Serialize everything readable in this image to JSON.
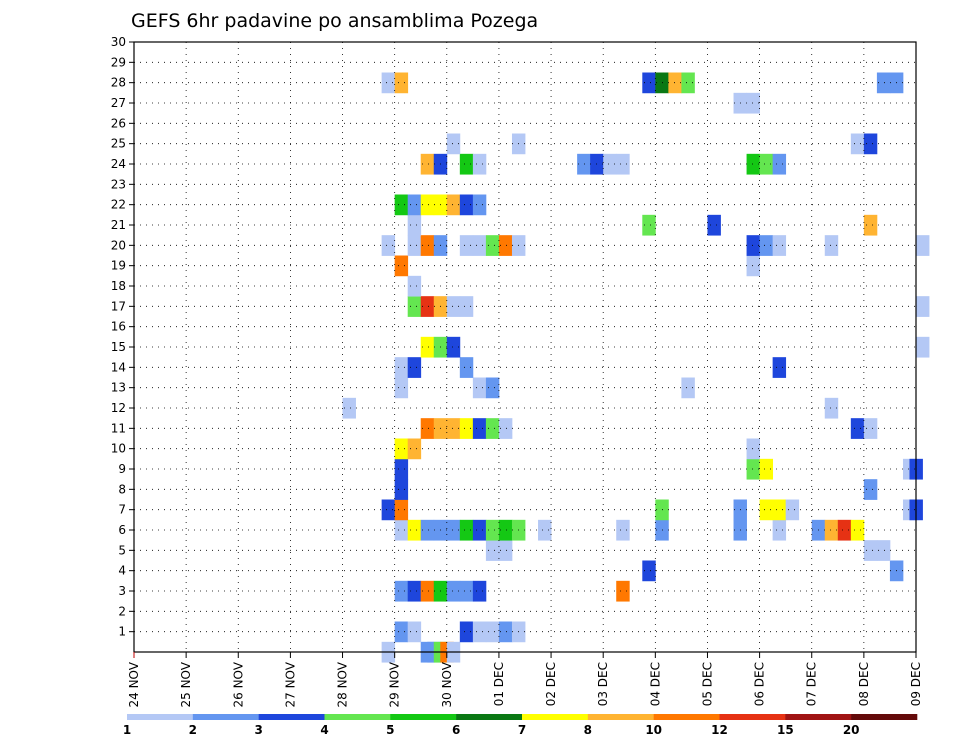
{
  "chart_data": {
    "type": "heatmap",
    "title": "GEFS 6hr padavine po ansamblima Pozega",
    "xlabel": "",
    "ylabel": "",
    "x_tick_labels": [
      "24 NOV",
      "25 NOV",
      "26 NOV",
      "27 NOV",
      "28 NOV",
      "29 NOV",
      "30 NOV",
      "01 DEC",
      "02 DEC",
      "03 DEC",
      "04 DEC",
      "05 DEC",
      "06 DEC",
      "07 DEC",
      "08 DEC",
      "09 DEC"
    ],
    "y_tick_labels": [
      "1",
      "2",
      "3",
      "4",
      "5",
      "6",
      "7",
      "8",
      "9",
      "10",
      "11",
      "12",
      "13",
      "14",
      "15",
      "16",
      "17",
      "18",
      "19",
      "20",
      "21",
      "22",
      "23",
      "24",
      "25",
      "26",
      "27",
      "28",
      "29",
      "30"
    ],
    "ylim": [
      0,
      30
    ],
    "x_steps_per_day": 4,
    "grid": true,
    "legend": {
      "placement": "bottom",
      "labels": [
        "1",
        "2",
        "3",
        "4",
        "5",
        "6",
        "7",
        "8",
        "10",
        "12",
        "15",
        "20"
      ],
      "colors": [
        "#b4c8f5",
        "#6496f0",
        "#1e46dc",
        "#64e650",
        "#14c814",
        "#0a7814",
        "#ffff00",
        "#ffb432",
        "#ff7800",
        "#e63214",
        "#a01414",
        "#640a0a"
      ]
    },
    "color_levels": [
      1,
      2,
      3,
      4,
      5,
      6,
      7,
      8,
      10,
      12,
      15,
      20
    ],
    "cells": [
      {
        "m": 0,
        "s": 19,
        "v": 1
      },
      {
        "m": 0,
        "s": 22,
        "v": 2
      },
      {
        "m": 0,
        "s": 22.5,
        "v": 2
      },
      {
        "m": 0,
        "s": 23,
        "v": 4
      },
      {
        "m": 0,
        "s": 23.5,
        "v": 10
      },
      {
        "m": 0,
        "s": 24,
        "v": 1
      },
      {
        "m": 1,
        "s": 20,
        "v": 2
      },
      {
        "m": 1,
        "s": 21,
        "v": 1
      },
      {
        "m": 1,
        "s": 25,
        "v": 3
      },
      {
        "m": 1,
        "s": 26,
        "v": 1
      },
      {
        "m": 1,
        "s": 27,
        "v": 1
      },
      {
        "m": 1,
        "s": 28,
        "v": 2
      },
      {
        "m": 1,
        "s": 29,
        "v": 1
      },
      {
        "m": 3,
        "s": 20,
        "v": 2
      },
      {
        "m": 3,
        "s": 21,
        "v": 3
      },
      {
        "m": 3,
        "s": 22,
        "v": 10
      },
      {
        "m": 3,
        "s": 23,
        "v": 5
      },
      {
        "m": 3,
        "s": 24,
        "v": 2
      },
      {
        "m": 3,
        "s": 25,
        "v": 2
      },
      {
        "m": 3,
        "s": 26,
        "v": 3
      },
      {
        "m": 3,
        "s": 37,
        "v": 10
      },
      {
        "m": 4,
        "s": 39,
        "v": 3
      },
      {
        "m": 4,
        "s": 58,
        "v": 2
      },
      {
        "m": 5,
        "s": 27,
        "v": 1
      },
      {
        "m": 5,
        "s": 28,
        "v": 1
      },
      {
        "m": 5,
        "s": 56,
        "v": 1
      },
      {
        "m": 5,
        "s": 57,
        "v": 1
      },
      {
        "m": 6,
        "s": 20,
        "v": 1
      },
      {
        "m": 6,
        "s": 21,
        "v": 7
      },
      {
        "m": 6,
        "s": 22,
        "v": 2
      },
      {
        "m": 6,
        "s": 23,
        "v": 2
      },
      {
        "m": 6,
        "s": 24,
        "v": 2
      },
      {
        "m": 6,
        "s": 25,
        "v": 5
      },
      {
        "m": 6,
        "s": 26,
        "v": 3
      },
      {
        "m": 6,
        "s": 27,
        "v": 4
      },
      {
        "m": 6,
        "s": 28,
        "v": 5
      },
      {
        "m": 6,
        "s": 29,
        "v": 4
      },
      {
        "m": 6,
        "s": 31,
        "v": 1
      },
      {
        "m": 6,
        "s": 37,
        "v": 1
      },
      {
        "m": 6,
        "s": 40,
        "v": 2
      },
      {
        "m": 6,
        "s": 46,
        "v": 2
      },
      {
        "m": 6,
        "s": 49,
        "v": 1
      },
      {
        "m": 6,
        "s": 52,
        "v": 2
      },
      {
        "m": 6,
        "s": 53,
        "v": 8
      },
      {
        "m": 6,
        "s": 54,
        "v": 12
      },
      {
        "m": 6,
        "s": 55,
        "v": 7
      },
      {
        "m": 7,
        "s": 19,
        "v": 3
      },
      {
        "m": 7,
        "s": 20,
        "v": 10
      },
      {
        "m": 7,
        "s": 40,
        "v": 4
      },
      {
        "m": 7,
        "s": 46,
        "v": 2
      },
      {
        "m": 7,
        "s": 48,
        "v": 7
      },
      {
        "m": 7,
        "s": 49,
        "v": 7
      },
      {
        "m": 7,
        "s": 50,
        "v": 1
      },
      {
        "m": 7,
        "s": 59,
        "v": 1
      },
      {
        "m": 7,
        "s": 59.5,
        "v": 3
      },
      {
        "m": 8,
        "s": 20,
        "v": 3
      },
      {
        "m": 8,
        "s": 56,
        "v": 2
      },
      {
        "m": 9,
        "s": 20,
        "v": 3
      },
      {
        "m": 9,
        "s": 47,
        "v": 4
      },
      {
        "m": 9,
        "s": 48,
        "v": 7
      },
      {
        "m": 9,
        "s": 59,
        "v": 1
      },
      {
        "m": 9,
        "s": 59.5,
        "v": 3
      },
      {
        "m": 10,
        "s": 20,
        "v": 7
      },
      {
        "m": 10,
        "s": 21,
        "v": 8
      },
      {
        "m": 10,
        "s": 47,
        "v": 1
      },
      {
        "m": 11,
        "s": 22,
        "v": 10
      },
      {
        "m": 11,
        "s": 23,
        "v": 8
      },
      {
        "m": 11,
        "s": 24,
        "v": 8
      },
      {
        "m": 11,
        "s": 25,
        "v": 7
      },
      {
        "m": 11,
        "s": 26,
        "v": 3
      },
      {
        "m": 11,
        "s": 27,
        "v": 4
      },
      {
        "m": 11,
        "s": 28,
        "v": 1
      },
      {
        "m": 11,
        "s": 55,
        "v": 3
      },
      {
        "m": 11,
        "s": 56,
        "v": 1
      },
      {
        "m": 12,
        "s": 16,
        "v": 1
      },
      {
        "m": 12,
        "s": 53,
        "v": 1
      },
      {
        "m": 13,
        "s": 20,
        "v": 1
      },
      {
        "m": 13,
        "s": 26,
        "v": 1
      },
      {
        "m": 13,
        "s": 27,
        "v": 2
      },
      {
        "m": 13,
        "s": 42,
        "v": 1
      },
      {
        "m": 14,
        "s": 20,
        "v": 1
      },
      {
        "m": 14,
        "s": 21,
        "v": 3
      },
      {
        "m": 14,
        "s": 25,
        "v": 2
      },
      {
        "m": 14,
        "s": 49,
        "v": 3
      },
      {
        "m": 15,
        "s": 22,
        "v": 7
      },
      {
        "m": 15,
        "s": 23,
        "v": 4
      },
      {
        "m": 15,
        "s": 24,
        "v": 3
      },
      {
        "m": 15,
        "s": 60,
        "v": 1
      },
      {
        "m": 17,
        "s": 21,
        "v": 4
      },
      {
        "m": 17,
        "s": 22,
        "v": 12
      },
      {
        "m": 17,
        "s": 23,
        "v": 8
      },
      {
        "m": 17,
        "s": 24,
        "v": 1
      },
      {
        "m": 17,
        "s": 25,
        "v": 1
      },
      {
        "m": 17,
        "s": 60,
        "v": 1
      },
      {
        "m": 18,
        "s": 21,
        "v": 1
      },
      {
        "m": 19,
        "s": 20,
        "v": 10
      },
      {
        "m": 19,
        "s": 47,
        "v": 1
      },
      {
        "m": 20,
        "s": 19,
        "v": 1
      },
      {
        "m": 20,
        "s": 21,
        "v": 1
      },
      {
        "m": 20,
        "s": 22,
        "v": 10
      },
      {
        "m": 20,
        "s": 23,
        "v": 2
      },
      {
        "m": 20,
        "s": 25,
        "v": 1
      },
      {
        "m": 20,
        "s": 26,
        "v": 1
      },
      {
        "m": 20,
        "s": 27,
        "v": 4
      },
      {
        "m": 20,
        "s": 28,
        "v": 10
      },
      {
        "m": 20,
        "s": 29,
        "v": 1
      },
      {
        "m": 20,
        "s": 47,
        "v": 3
      },
      {
        "m": 20,
        "s": 48,
        "v": 2
      },
      {
        "m": 20,
        "s": 49,
        "v": 1
      },
      {
        "m": 20,
        "s": 53,
        "v": 1
      },
      {
        "m": 20,
        "s": 60,
        "v": 1
      },
      {
        "m": 21,
        "s": 21,
        "v": 1
      },
      {
        "m": 21,
        "s": 39,
        "v": 4
      },
      {
        "m": 21,
        "s": 44,
        "v": 3
      },
      {
        "m": 21,
        "s": 56,
        "v": 8
      },
      {
        "m": 22,
        "s": 20,
        "v": 5
      },
      {
        "m": 22,
        "s": 21,
        "v": 2
      },
      {
        "m": 22,
        "s": 22,
        "v": 7
      },
      {
        "m": 22,
        "s": 23,
        "v": 7
      },
      {
        "m": 22,
        "s": 24,
        "v": 8
      },
      {
        "m": 22,
        "s": 25,
        "v": 3
      },
      {
        "m": 22,
        "s": 26,
        "v": 2
      },
      {
        "m": 24,
        "s": 22,
        "v": 8
      },
      {
        "m": 24,
        "s": 23,
        "v": 3
      },
      {
        "m": 24,
        "s": 25,
        "v": 5
      },
      {
        "m": 24,
        "s": 26,
        "v": 1
      },
      {
        "m": 24,
        "s": 34,
        "v": 2
      },
      {
        "m": 24,
        "s": 35,
        "v": 3
      },
      {
        "m": 24,
        "s": 36,
        "v": 1
      },
      {
        "m": 24,
        "s": 37,
        "v": 1
      },
      {
        "m": 24,
        "s": 47,
        "v": 5
      },
      {
        "m": 24,
        "s": 48,
        "v": 4
      },
      {
        "m": 24,
        "s": 49,
        "v": 2
      },
      {
        "m": 25,
        "s": 24,
        "v": 1
      },
      {
        "m": 25,
        "s": 29,
        "v": 1
      },
      {
        "m": 25,
        "s": 55,
        "v": 1
      },
      {
        "m": 25,
        "s": 56,
        "v": 3
      },
      {
        "m": 27,
        "s": 46,
        "v": 1
      },
      {
        "m": 27,
        "s": 47,
        "v": 1
      },
      {
        "m": 28,
        "s": 19,
        "v": 1
      },
      {
        "m": 28,
        "s": 20,
        "v": 8
      },
      {
        "m": 28,
        "s": 39,
        "v": 3
      },
      {
        "m": 28,
        "s": 40,
        "v": 6
      },
      {
        "m": 28,
        "s": 41,
        "v": 8
      },
      {
        "m": 28,
        "s": 42,
        "v": 4
      },
      {
        "m": 28,
        "s": 57,
        "v": 2
      },
      {
        "m": 28,
        "s": 58,
        "v": 2
      }
    ]
  }
}
